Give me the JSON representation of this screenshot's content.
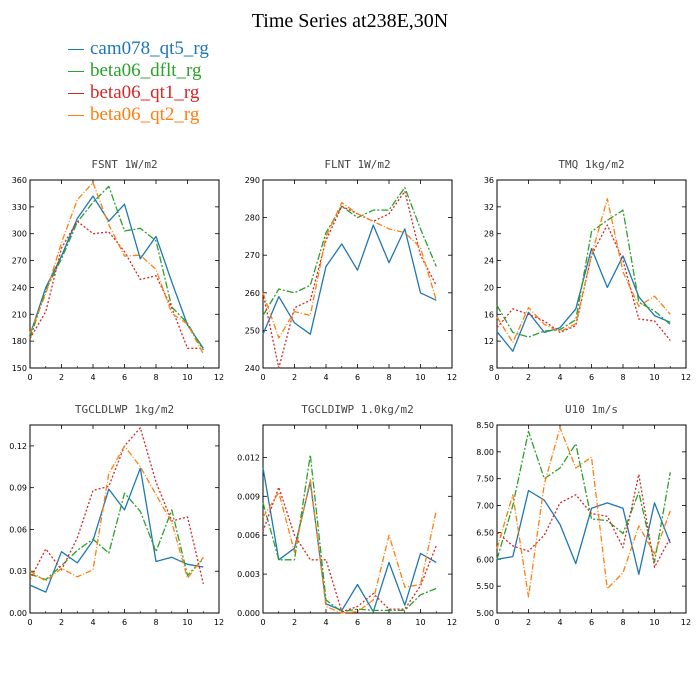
{
  "title": "Time Series at238E,30N",
  "legend": [
    {
      "name": "cam078_qt5_rg",
      "color": "#1f77b4",
      "dash": ""
    },
    {
      "name": "beta06_dflt_rg",
      "color": "#2ca02c",
      "dash": "7,2,2,2"
    },
    {
      "name": "beta06_qt1_rg",
      "color": "#d62728",
      "dash": "2,2"
    },
    {
      "name": "beta06_qt2_rg",
      "color": "#ff7f0e",
      "dash": "6,2,1,2"
    }
  ],
  "chart_data": [
    {
      "type": "line",
      "title": "FSNT  1W/m2",
      "x": [
        0,
        1,
        2,
        3,
        4,
        5,
        6,
        7,
        8,
        9,
        10,
        11
      ],
      "xlim": [
        0,
        12
      ],
      "xticks": [
        0,
        2,
        4,
        6,
        8,
        10,
        12
      ],
      "xtick_labels": [
        "0",
        "2",
        "4",
        "6",
        "8",
        "10",
        "12"
      ],
      "ylim": [
        150,
        360
      ],
      "yticks": [
        150,
        180,
        210,
        240,
        270,
        300,
        330,
        360
      ],
      "ytick_labels": [
        "150",
        "180",
        "210",
        "240",
        "270",
        "300",
        "330",
        "360"
      ],
      "series": [
        {
          "name": "cam078_qt5_rg",
          "values": [
            187,
            240,
            275,
            317,
            342,
            314,
            333,
            272,
            297,
            246,
            198,
            172
          ]
        },
        {
          "name": "beta06_dflt_rg",
          "values": [
            183,
            237,
            272,
            313,
            335,
            353,
            303,
            306,
            292,
            218,
            200,
            170
          ]
        },
        {
          "name": "beta06_qt1_rg",
          "values": [
            183,
            213,
            284,
            314,
            300,
            302,
            280,
            249,
            253,
            217,
            172,
            172
          ]
        },
        {
          "name": "beta06_qt2_rg",
          "values": [
            189,
            233,
            290,
            338,
            357,
            310,
            275,
            276,
            260,
            211,
            199,
            166
          ]
        }
      ]
    },
    {
      "type": "line",
      "title": "FLNT  1W/m2",
      "x": [
        0,
        1,
        2,
        3,
        4,
        5,
        6,
        7,
        8,
        9,
        10,
        11
      ],
      "xlim": [
        0,
        12
      ],
      "xticks": [
        0,
        2,
        4,
        6,
        8,
        10,
        12
      ],
      "xtick_labels": [
        "0",
        "2",
        "4",
        "6",
        "8",
        "10",
        "12"
      ],
      "ylim": [
        240,
        290
      ],
      "yticks": [
        240,
        250,
        260,
        270,
        280,
        290
      ],
      "ytick_labels": [
        "240",
        "250",
        "260",
        "270",
        "280",
        "290"
      ],
      "series": [
        {
          "name": "cam078_qt5_rg",
          "values": [
            249,
            259,
            252,
            249,
            267,
            273,
            266,
            278,
            268,
            277,
            260,
            258
          ]
        },
        {
          "name": "beta06_dflt_rg",
          "values": [
            254,
            261,
            260,
            262,
            276,
            283,
            280,
            282,
            282,
            288,
            277,
            267
          ]
        },
        {
          "name": "beta06_qt1_rg",
          "values": [
            260,
            240,
            256,
            258,
            274,
            283,
            281,
            279,
            281,
            287,
            270,
            262
          ]
        },
        {
          "name": "beta06_qt2_rg",
          "values": [
            260,
            248,
            255,
            254,
            275,
            284,
            281,
            279,
            277,
            276,
            272,
            258
          ]
        }
      ]
    },
    {
      "type": "line",
      "title": "TMQ  1kg/m2",
      "x": [
        0,
        1,
        2,
        3,
        4,
        5,
        6,
        7,
        8,
        9,
        10,
        11
      ],
      "xlim": [
        0,
        12
      ],
      "xticks": [
        0,
        2,
        4,
        6,
        8,
        10,
        12
      ],
      "xtick_labels": [
        "0",
        "2",
        "4",
        "6",
        "8",
        "10",
        "12"
      ],
      "ylim": [
        8,
        36
      ],
      "yticks": [
        8,
        12,
        16,
        20,
        24,
        28,
        32,
        36
      ],
      "ytick_labels": [
        "8",
        "12",
        "16",
        "20",
        "24",
        "28",
        "32",
        "36"
      ],
      "series": [
        {
          "name": "cam078_qt5_rg",
          "values": [
            13.4,
            10.5,
            16.3,
            13.3,
            14.0,
            16.8,
            25.8,
            20.0,
            24.7,
            18.6,
            15.8,
            14.8
          ]
        },
        {
          "name": "beta06_dflt_rg",
          "values": [
            17.3,
            13.3,
            12.6,
            13.5,
            13.7,
            15.2,
            28.3,
            30.0,
            31.5,
            17.8,
            16.5,
            14.5
          ]
        },
        {
          "name": "beta06_qt1_rg",
          "values": [
            14.0,
            16.8,
            16.0,
            15.0,
            13.3,
            14.3,
            24.8,
            29.3,
            24.0,
            15.3,
            15.0,
            12.1
          ]
        },
        {
          "name": "beta06_qt2_rg",
          "values": [
            15.6,
            11.8,
            17.0,
            14.5,
            13.4,
            14.6,
            24.8,
            33.2,
            22.3,
            17.2,
            18.7,
            16.0
          ]
        }
      ]
    },
    {
      "type": "line",
      "title": "TGCLDLWP  1kg/m2",
      "x": [
        0,
        1,
        2,
        3,
        4,
        5,
        6,
        7,
        8,
        9,
        10,
        11
      ],
      "xlim": [
        0,
        12
      ],
      "xticks": [
        0,
        2,
        4,
        6,
        8,
        10,
        12
      ],
      "xtick_labels": [
        "0",
        "2",
        "4",
        "6",
        "8",
        "10",
        "12"
      ],
      "ylim": [
        0,
        0.135
      ],
      "yticks": [
        0,
        0.03,
        0.06,
        0.09,
        0.12
      ],
      "ytick_labels": [
        "0.00",
        "0.03",
        "0.06",
        "0.09",
        "0.12"
      ],
      "series": [
        {
          "name": "cam078_qt5_rg",
          "values": [
            0.02,
            0.015,
            0.044,
            0.036,
            0.052,
            0.089,
            0.074,
            0.104,
            0.037,
            0.04,
            0.035,
            0.033
          ]
        },
        {
          "name": "beta06_dflt_rg",
          "values": [
            0.028,
            0.024,
            0.034,
            0.045,
            0.053,
            0.043,
            0.086,
            0.073,
            0.044,
            0.074,
            0.027,
            0.039
          ]
        },
        {
          "name": "beta06_qt1_rg",
          "values": [
            0.024,
            0.046,
            0.031,
            0.054,
            0.088,
            0.091,
            0.12,
            0.133,
            0.094,
            0.066,
            0.069,
            0.021
          ]
        },
        {
          "name": "beta06_qt2_rg",
          "values": [
            0.03,
            0.023,
            0.032,
            0.026,
            0.031,
            0.1,
            0.12,
            0.105,
            0.085,
            0.065,
            0.025,
            0.04
          ]
        }
      ]
    },
    {
      "type": "line",
      "title": "TGCLDIWP  1.0kg/m2",
      "x": [
        0,
        1,
        2,
        3,
        4,
        5,
        6,
        7,
        8,
        9,
        10,
        11
      ],
      "xlim": [
        0,
        12
      ],
      "xticks": [
        0,
        2,
        4,
        6,
        8,
        10,
        12
      ],
      "xtick_labels": [
        "0",
        "2",
        "4",
        "6",
        "8",
        "10",
        "12"
      ],
      "ylim": [
        0,
        0.0145
      ],
      "yticks": [
        0,
        0.003,
        0.006,
        0.009,
        0.012
      ],
      "ytick_labels": [
        "0.000",
        "0.003",
        "0.006",
        "0.009",
        "0.012"
      ],
      "series": [
        {
          "name": "cam078_qt5_rg",
          "values": [
            0.0112,
            0.0041,
            0.005,
            0.0101,
            0.0007,
            0.0002,
            0.0022,
            0.0001,
            0.0039,
            0.0006,
            0.0046,
            0.0039
          ]
        },
        {
          "name": "beta06_dflt_rg",
          "values": [
            0.0085,
            0.0041,
            0.0041,
            0.0122,
            0.001,
            0.0001,
            0.0003,
            0.0002,
            0.0002,
            0.0002,
            0.0014,
            0.0019
          ]
        },
        {
          "name": "beta06_qt1_rg",
          "values": [
            0.0063,
            0.0097,
            0.006,
            0.0041,
            0.0041,
            0.0001,
            0.0005,
            0.0015,
            0.0003,
            0.0003,
            0.0021,
            0.0052
          ]
        },
        {
          "name": "beta06_qt2_rg",
          "values": [
            0.0074,
            0.0093,
            0.0047,
            0.0103,
            0.0005,
            0.0,
            0.0001,
            0.001,
            0.006,
            0.002,
            0.0022,
            0.0079
          ]
        }
      ]
    },
    {
      "type": "line",
      "title": "U10  1m/s",
      "x": [
        0,
        1,
        2,
        3,
        4,
        5,
        6,
        7,
        8,
        9,
        10,
        11
      ],
      "xlim": [
        0,
        12
      ],
      "xticks": [
        0,
        2,
        4,
        6,
        8,
        10,
        12
      ],
      "xtick_labels": [
        "0",
        "2",
        "4",
        "6",
        "8",
        "10",
        "12"
      ],
      "ylim": [
        5,
        8.5
      ],
      "yticks": [
        5,
        5.5,
        6,
        6.5,
        7,
        7.5,
        8,
        8.5
      ],
      "ytick_labels": [
        "5.00",
        "5.50",
        "6.00",
        "6.50",
        "7.00",
        "7.50",
        "8.00",
        "8.50"
      ],
      "series": [
        {
          "name": "cam078_qt5_rg",
          "values": [
            6.0,
            6.05,
            7.28,
            7.1,
            6.65,
            5.92,
            6.95,
            7.05,
            6.95,
            5.72,
            7.05,
            6.3
          ]
        },
        {
          "name": "beta06_dflt_rg",
          "values": [
            6.0,
            7.0,
            8.38,
            7.5,
            7.7,
            8.15,
            6.75,
            6.72,
            6.48,
            7.25,
            5.95,
            7.62
          ]
        },
        {
          "name": "beta06_qt1_rg",
          "values": [
            6.5,
            6.25,
            6.15,
            6.45,
            7.05,
            7.2,
            6.85,
            6.8,
            6.22,
            7.58,
            5.85,
            6.4
          ]
        },
        {
          "name": "beta06_qt2_rg",
          "values": [
            6.2,
            7.2,
            5.3,
            7.4,
            8.45,
            7.7,
            7.9,
            5.45,
            5.75,
            6.62,
            6.1,
            6.9
          ]
        }
      ]
    }
  ]
}
